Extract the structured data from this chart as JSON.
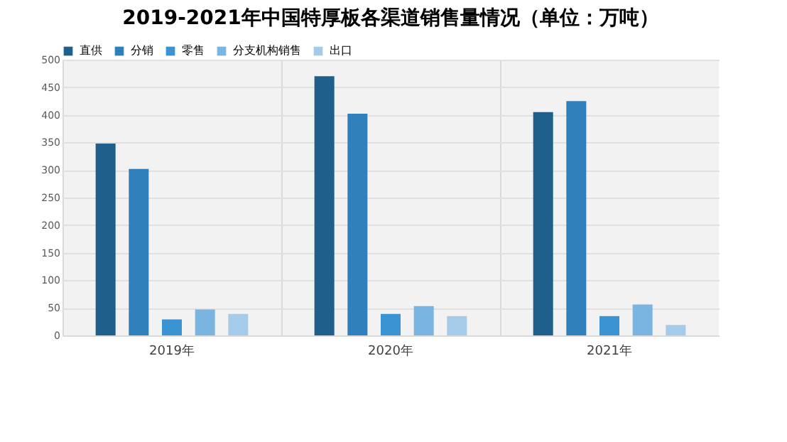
{
  "chart_data": {
    "type": "bar",
    "title": "2019-2021年中国特厚板各渠道销售量情况（单位：万吨）",
    "categories": [
      "2019年",
      "2020年",
      "2021年"
    ],
    "series": [
      {
        "name": "直供",
        "color": "#1f5f8b",
        "values": [
          348,
          470,
          405
        ]
      },
      {
        "name": "分销",
        "color": "#2e7fba",
        "values": [
          302,
          402,
          425
        ]
      },
      {
        "name": "零售",
        "color": "#3a93d2",
        "values": [
          29,
          39,
          35
        ]
      },
      {
        "name": "分支机构销售",
        "color": "#7ab4e0",
        "values": [
          47,
          53,
          56
        ]
      },
      {
        "name": "出口",
        "color": "#a5cbea",
        "values": [
          39,
          35,
          19
        ]
      }
    ],
    "ylim": [
      0,
      500
    ],
    "yticks": [
      0,
      50,
      100,
      150,
      200,
      250,
      300,
      350,
      400,
      450,
      500
    ],
    "grid": true,
    "legend": "top"
  }
}
